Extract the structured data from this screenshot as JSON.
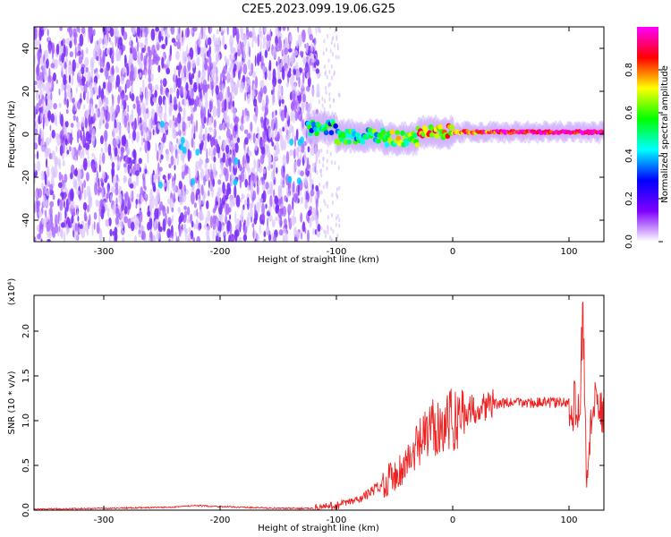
{
  "title": "C2E5.2023.099.19.06.G25",
  "chart_data": [
    {
      "type": "heatmap",
      "xlabel": "Height of straight line (km)",
      "ylabel": "Frequency (Hz)",
      "xlim": [
        -360,
        130
      ],
      "ylim": [
        -50,
        50
      ],
      "x_ticks": [
        -300,
        -200,
        -100,
        0,
        100
      ],
      "x_tick_labels": [
        "-300",
        "-200",
        "-100",
        "0",
        "100"
      ],
      "y_ticks": [
        -40,
        -20,
        0,
        20,
        40
      ],
      "y_tick_labels": [
        "-40",
        "-20",
        "0",
        "20",
        "40"
      ],
      "colorbar": {
        "label": "Normalized spectral amplitude",
        "range": [
          0.0,
          1.0
        ],
        "ticks": [
          0.0,
          0.2,
          0.4,
          0.6,
          0.8
        ],
        "tick_labels": [
          "0.0",
          "0.2",
          "0.4",
          "0.6",
          "0.8"
        ],
        "colormap": [
          "#ffffff",
          "#7f00ff",
          "#0000ff",
          "#00ffff",
          "#00ff00",
          "#ffff00",
          "#ff0000",
          "#ff00ff"
        ]
      },
      "noise_region": {
        "x_start": -360,
        "x_end": -115,
        "amplitude": 0.1,
        "color": "#7b2ff7"
      },
      "signal_band": [
        {
          "x_start": -125,
          "x_end": -100,
          "frequency": 3,
          "amplitude": 0.45
        },
        {
          "x_start": -100,
          "x_end": -60,
          "frequency": -1,
          "amplitude": 0.5
        },
        {
          "x_start": -60,
          "x_end": -30,
          "frequency": -2,
          "amplitude": 0.6
        },
        {
          "x_start": -30,
          "x_end": 0,
          "frequency": 1,
          "amplitude": 0.75
        },
        {
          "x_start": 0,
          "x_end": 40,
          "frequency": 1,
          "amplitude": 0.85
        },
        {
          "x_start": 40,
          "x_end": 130,
          "frequency": 1,
          "amplitude": 0.95
        }
      ]
    },
    {
      "type": "line",
      "xlabel": "Height of straight line (km)",
      "ylabel": "SNR (10 * v/v)",
      "y_multiplier": "(x10⁴)",
      "xlim": [
        -360,
        130
      ],
      "ylim": [
        0.0,
        2.4
      ],
      "x_ticks": [
        -300,
        -200,
        -100,
        0,
        100
      ],
      "x_tick_labels": [
        "-300",
        "-200",
        "-100",
        "0",
        "100"
      ],
      "y_ticks": [
        0.0,
        0.5,
        1.0,
        1.5,
        2.0
      ],
      "y_tick_labels": [
        "0.0",
        "0.5",
        "1.0",
        "1.5",
        "2.0"
      ],
      "series": [
        {
          "color": "#ee2222",
          "x": [
            -360,
            -300,
            -250,
            -220,
            -200,
            -150,
            -120,
            -100,
            -80,
            -65,
            -55,
            -45,
            -35,
            -25,
            -15,
            0,
            10,
            30,
            50,
            80,
            100,
            105,
            110,
            112,
            115,
            120,
            130
          ],
          "y": [
            0.01,
            0.02,
            0.03,
            0.05,
            0.04,
            0.02,
            0.02,
            0.05,
            0.12,
            0.25,
            0.35,
            0.45,
            0.6,
            0.8,
            0.95,
            1.0,
            1.1,
            1.18,
            1.2,
            1.2,
            1.2,
            1.15,
            1.3,
            2.4,
            0.3,
            1.15,
            1.12
          ]
        }
      ]
    }
  ]
}
